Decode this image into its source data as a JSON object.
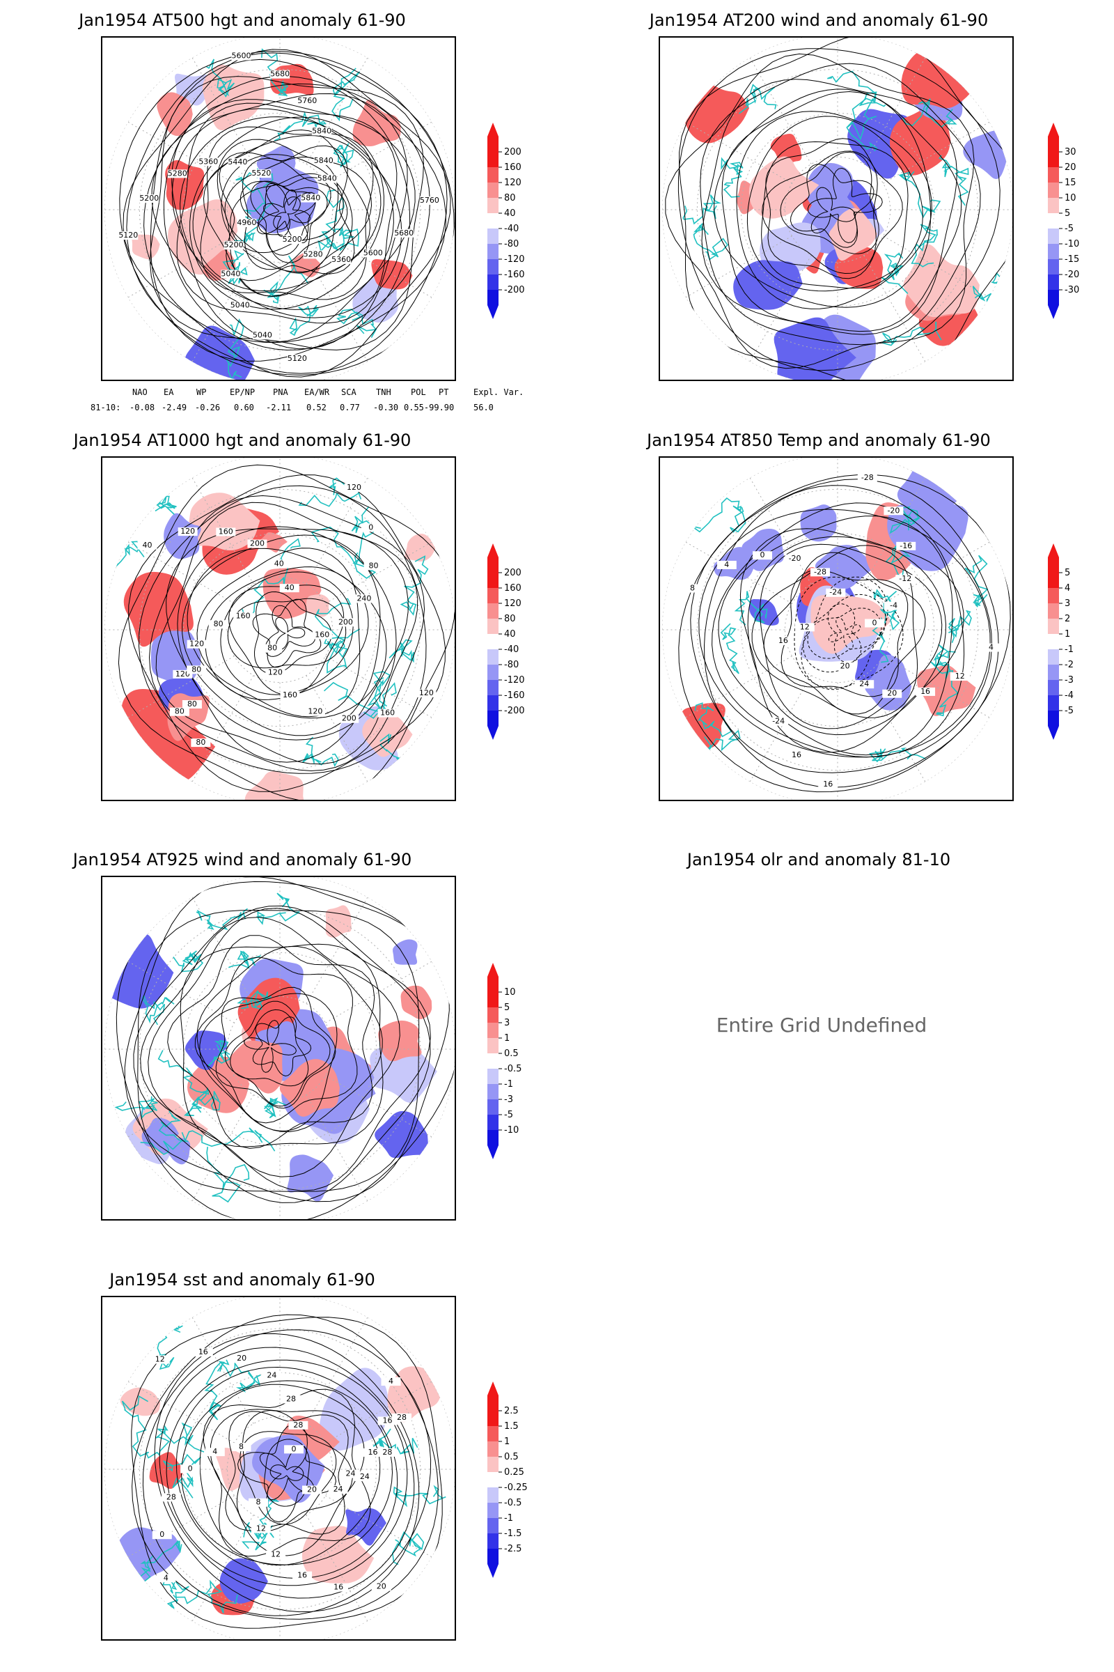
{
  "panels": [
    {
      "id": "p1",
      "title": "Jan1954 AT500 hgt and anomaly 61-90",
      "field": "height",
      "anomaly": "height",
      "has_data": true,
      "contour_labels": [
        "5840",
        "5840",
        "5760",
        "5680",
        "5600",
        "5360",
        "5280",
        "5200",
        "5120",
        "5040",
        "5040",
        "5040",
        "5200",
        "4960",
        "5120",
        "5200",
        "5280",
        "5360",
        "5440",
        "5520",
        "5600",
        "5680",
        "5760",
        "5840",
        "5840"
      ]
    },
    {
      "id": "p2",
      "title": "Jan1954 AT200 wind and anomaly 61-90",
      "field": "streamlines",
      "anomaly": "wind",
      "has_data": true,
      "contour_labels": []
    },
    {
      "id": "p3",
      "title": "Jan1954 AT1000 hgt and anomaly 61-90",
      "field": "height",
      "anomaly": "height",
      "has_data": true,
      "contour_labels": [
        "80",
        "120",
        "120",
        "80",
        "160",
        "40",
        "120",
        "160",
        "200",
        "40",
        "40",
        "120",
        "0",
        "80",
        "240",
        "200",
        "160",
        "120",
        "160",
        "200",
        "120",
        "160",
        "120",
        "80",
        "80",
        "80",
        "80"
      ]
    },
    {
      "id": "p4",
      "title": "Jan1954 AT850 Temp and anomaly 61-90",
      "field": "temperature",
      "anomaly": "temperature",
      "has_data": true,
      "contour_labels": [
        "16",
        "12",
        "8",
        "4",
        "0",
        "-20",
        "-28",
        "-24",
        "-28",
        "-20",
        "-16",
        "-12",
        "-4",
        "0",
        "4",
        "12",
        "16",
        "20",
        "24",
        "20",
        "16",
        "16",
        "-24"
      ]
    },
    {
      "id": "p5",
      "title": "Jan1954 AT925 wind and anomaly 61-90",
      "field": "streamlines",
      "anomaly": "wind",
      "has_data": true,
      "contour_labels": []
    },
    {
      "id": "p6",
      "title": "Jan1954 olr and anomaly 81-10",
      "has_data": false,
      "message": "Entire Grid Undefined"
    },
    {
      "id": "p7",
      "title": "Jan1954 sst and anomaly 61-90",
      "field": "sst",
      "anomaly": "sst",
      "has_data": true,
      "contour_labels": [
        "28",
        "28",
        "24",
        "24",
        "20",
        "20",
        "16",
        "16",
        "12",
        "12",
        "8",
        "4",
        "0",
        "28",
        "0",
        "4",
        "8",
        "12",
        "16",
        "20",
        "24",
        "28",
        "28",
        "0",
        "4",
        "16",
        "16",
        "24"
      ]
    }
  ],
  "colorbars": [
    {
      "panel": "p1",
      "labels": [
        "200",
        "160",
        "120",
        "80",
        "40",
        "-40",
        "-80",
        "-120",
        "-160",
        "-200"
      ]
    },
    {
      "panel": "p2",
      "labels": [
        "30",
        "20",
        "15",
        "10",
        "5",
        "-5",
        "-10",
        "-15",
        "-20",
        "-30"
      ]
    },
    {
      "panel": "p3",
      "labels": [
        "200",
        "160",
        "120",
        "80",
        "40",
        "-40",
        "-80",
        "-120",
        "-160",
        "-200"
      ]
    },
    {
      "panel": "p4",
      "labels": [
        "5",
        "4",
        "3",
        "2",
        "1",
        "-1",
        "-2",
        "-3",
        "-4",
        "-5"
      ]
    },
    {
      "panel": "p5",
      "labels": [
        "10",
        "5",
        "3",
        "1",
        "0.5",
        "-0.5",
        "-1",
        "-3",
        "-5",
        "-10"
      ]
    },
    {
      "panel": "p7",
      "labels": [
        "2.5",
        "1.5",
        "1",
        "0.5",
        "0.25",
        "-0.25",
        "-0.5",
        "-1",
        "-1.5",
        "-2.5"
      ]
    }
  ],
  "colorbar_colors": [
    "#f01818",
    "#f55a5a",
    "#f89090",
    "#fbc3c3",
    "#ffffff",
    "#c8c8fa",
    "#9696f5",
    "#6464ef",
    "#3232e8",
    "#1010e0"
  ],
  "teleconnections": {
    "headers": [
      "NAO",
      "EA",
      "WP",
      "EP/NP",
      "PNA",
      "EA/WR",
      "SCA",
      "TNH",
      "POL",
      "PT",
      "Expl. Var."
    ],
    "row_label": "81-10:",
    "values": [
      "-0.08",
      "-2.49",
      "-0.26",
      "0.60",
      "-2.11",
      "0.52",
      "0.77",
      "-0.30",
      "0.55-99.90",
      "56.0"
    ]
  },
  "colors": {
    "coast": "#20c0c0",
    "contour": "#000000",
    "grid": "#b0b0b0"
  }
}
